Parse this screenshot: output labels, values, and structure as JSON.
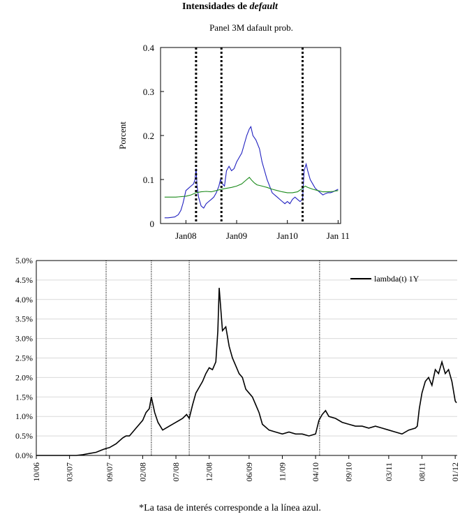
{
  "figure": {
    "title_main": "Intensidades de ",
    "title_emph": "default",
    "footnote": "*La tasa de interés corresponde a la línea azul."
  },
  "chart_data": [
    {
      "type": "line",
      "title": "Panel 3M dafault prob.",
      "xlabel": "",
      "ylabel": "Porcent",
      "x_ticks": [
        "Jan08",
        "Jan09",
        "Jan10",
        "Jan 11"
      ],
      "x_tick_positions": [
        2008.0,
        2009.0,
        2010.0,
        2011.0
      ],
      "xlim": [
        2007.5,
        2011.05
      ],
      "y_ticks": [
        "0",
        "0.1",
        "0.2",
        "0.3",
        "0.4"
      ],
      "ylim": [
        0,
        0.4
      ],
      "event_lines": [
        2008.2,
        2008.7,
        2010.3
      ],
      "series": [
        {
          "name": "blue",
          "color": "#2020c0",
          "x": [
            2007.58,
            2007.65,
            2007.72,
            2007.78,
            2007.85,
            2007.9,
            2007.94,
            2007.97,
            2008.0,
            2008.05,
            2008.1,
            2008.15,
            2008.18,
            2008.2,
            2008.22,
            2008.25,
            2008.3,
            2008.35,
            2008.4,
            2008.45,
            2008.5,
            2008.55,
            2008.6,
            2008.65,
            2008.68,
            2008.72,
            2008.76,
            2008.8,
            2008.85,
            2008.9,
            2008.95,
            2009.0,
            2009.05,
            2009.1,
            2009.15,
            2009.2,
            2009.25,
            2009.28,
            2009.32,
            2009.38,
            2009.45,
            2009.5,
            2009.55,
            2009.6,
            2009.65,
            2009.7,
            2009.75,
            2009.8,
            2009.85,
            2009.9,
            2009.95,
            2010.0,
            2010.05,
            2010.1,
            2010.15,
            2010.2,
            2010.25,
            2010.3,
            2010.33,
            2010.37,
            2010.4,
            2010.45,
            2010.5,
            2010.55,
            2010.6,
            2010.65,
            2010.7,
            2010.75,
            2010.8,
            2010.85,
            2010.9,
            2010.95,
            2011.0
          ],
          "values": [
            0.013,
            0.013,
            0.014,
            0.015,
            0.02,
            0.03,
            0.045,
            0.06,
            0.075,
            0.08,
            0.085,
            0.09,
            0.1,
            0.125,
            0.085,
            0.06,
            0.04,
            0.035,
            0.045,
            0.05,
            0.055,
            0.06,
            0.07,
            0.085,
            0.1,
            0.09,
            0.085,
            0.12,
            0.13,
            0.12,
            0.125,
            0.14,
            0.15,
            0.16,
            0.18,
            0.2,
            0.215,
            0.22,
            0.2,
            0.19,
            0.17,
            0.14,
            0.12,
            0.1,
            0.085,
            0.07,
            0.065,
            0.06,
            0.055,
            0.05,
            0.045,
            0.05,
            0.045,
            0.055,
            0.06,
            0.055,
            0.05,
            0.055,
            0.12,
            0.135,
            0.12,
            0.1,
            0.09,
            0.08,
            0.075,
            0.07,
            0.065,
            0.068,
            0.07,
            0.07,
            0.072,
            0.075,
            0.078
          ]
        },
        {
          "name": "green",
          "color": "#1a8a1a",
          "x": [
            2007.58,
            2007.8,
            2008.0,
            2008.1,
            2008.2,
            2008.3,
            2008.4,
            2008.5,
            2008.6,
            2008.7,
            2008.8,
            2008.9,
            2009.0,
            2009.1,
            2009.15,
            2009.2,
            2009.25,
            2009.3,
            2009.35,
            2009.4,
            2009.5,
            2009.6,
            2009.7,
            2009.8,
            2009.9,
            2010.0,
            2010.1,
            2010.2,
            2010.3,
            2010.35,
            2010.4,
            2010.5,
            2010.6,
            2010.7,
            2010.8,
            2010.9,
            2011.0
          ],
          "values": [
            0.06,
            0.06,
            0.062,
            0.065,
            0.07,
            0.072,
            0.073,
            0.072,
            0.075,
            0.078,
            0.08,
            0.082,
            0.085,
            0.09,
            0.095,
            0.1,
            0.105,
            0.098,
            0.092,
            0.088,
            0.085,
            0.082,
            0.078,
            0.075,
            0.072,
            0.07,
            0.07,
            0.072,
            0.08,
            0.085,
            0.082,
            0.078,
            0.075,
            0.072,
            0.072,
            0.073,
            0.075
          ]
        }
      ]
    },
    {
      "type": "line",
      "title": "",
      "xlabel": "",
      "ylabel": "",
      "x_ticks": [
        "10/06",
        "03/07",
        "09/07",
        "02/08",
        "07/08",
        "12/08",
        "06/09",
        "11/09",
        "04/10",
        "09/10",
        "03/11",
        "08/11",
        "01/12"
      ],
      "x_tick_positions": [
        0,
        5,
        11,
        16,
        21,
        26,
        32,
        37,
        42,
        47,
        53,
        58,
        63
      ],
      "xlim": [
        0,
        63.3
      ],
      "y_ticks": [
        "0.0%",
        "0.5%",
        "1.0%",
        "1.5%",
        "2.0%",
        "2.5%",
        "3.0%",
        "3.5%",
        "4.0%",
        "4.5%",
        "5.0%"
      ],
      "ylim": [
        0,
        5.0
      ],
      "event_lines": [
        10.5,
        17.3,
        23.0,
        42.6
      ],
      "legend": {
        "label": "lambda(t) 1Y",
        "placement": "top-right"
      },
      "series": [
        {
          "name": "lambda(t) 1Y",
          "color": "#000000",
          "x": [
            0,
            3,
            6,
            7,
            8,
            9,
            10,
            10.5,
            11,
            12,
            13,
            13.5,
            14,
            15,
            16,
            16.5,
            17,
            17.3,
            17.8,
            18.3,
            19,
            20,
            21,
            22,
            22.6,
            23.0,
            23.5,
            24,
            24.5,
            25,
            25.5,
            26,
            26.5,
            27,
            27.3,
            27.5,
            28,
            28.5,
            29,
            29.5,
            30,
            30.5,
            31,
            31.5,
            32,
            32.5,
            33,
            33.5,
            34,
            35,
            36,
            37,
            38,
            39,
            40,
            41,
            42,
            42.5,
            43,
            43.5,
            44,
            45,
            46,
            47,
            48,
            49,
            50,
            51,
            52,
            53,
            54,
            55,
            56,
            57,
            57.3,
            57.6,
            58,
            58.5,
            59,
            59.5,
            60,
            60.5,
            61,
            61.5,
            62,
            62.5,
            63,
            63.2
          ],
          "values": [
            0.0,
            0.0,
            0.0,
            0.02,
            0.05,
            0.08,
            0.15,
            0.18,
            0.2,
            0.3,
            0.45,
            0.5,
            0.5,
            0.7,
            0.9,
            1.1,
            1.2,
            1.5,
            1.1,
            0.85,
            0.65,
            0.75,
            0.85,
            0.95,
            1.05,
            0.95,
            1.3,
            1.6,
            1.75,
            1.9,
            2.1,
            2.25,
            2.2,
            2.4,
            3.2,
            4.3,
            3.2,
            3.3,
            2.8,
            2.5,
            2.3,
            2.1,
            2.0,
            1.7,
            1.6,
            1.5,
            1.3,
            1.1,
            0.8,
            0.65,
            0.6,
            0.55,
            0.6,
            0.55,
            0.55,
            0.5,
            0.55,
            0.9,
            1.05,
            1.15,
            1.0,
            0.95,
            0.85,
            0.8,
            0.75,
            0.75,
            0.7,
            0.75,
            0.7,
            0.65,
            0.6,
            0.55,
            0.65,
            0.7,
            0.75,
            1.2,
            1.6,
            1.9,
            2.0,
            1.8,
            2.2,
            2.1,
            2.4,
            2.1,
            2.2,
            1.9,
            1.4,
            1.35
          ]
        }
      ]
    }
  ]
}
